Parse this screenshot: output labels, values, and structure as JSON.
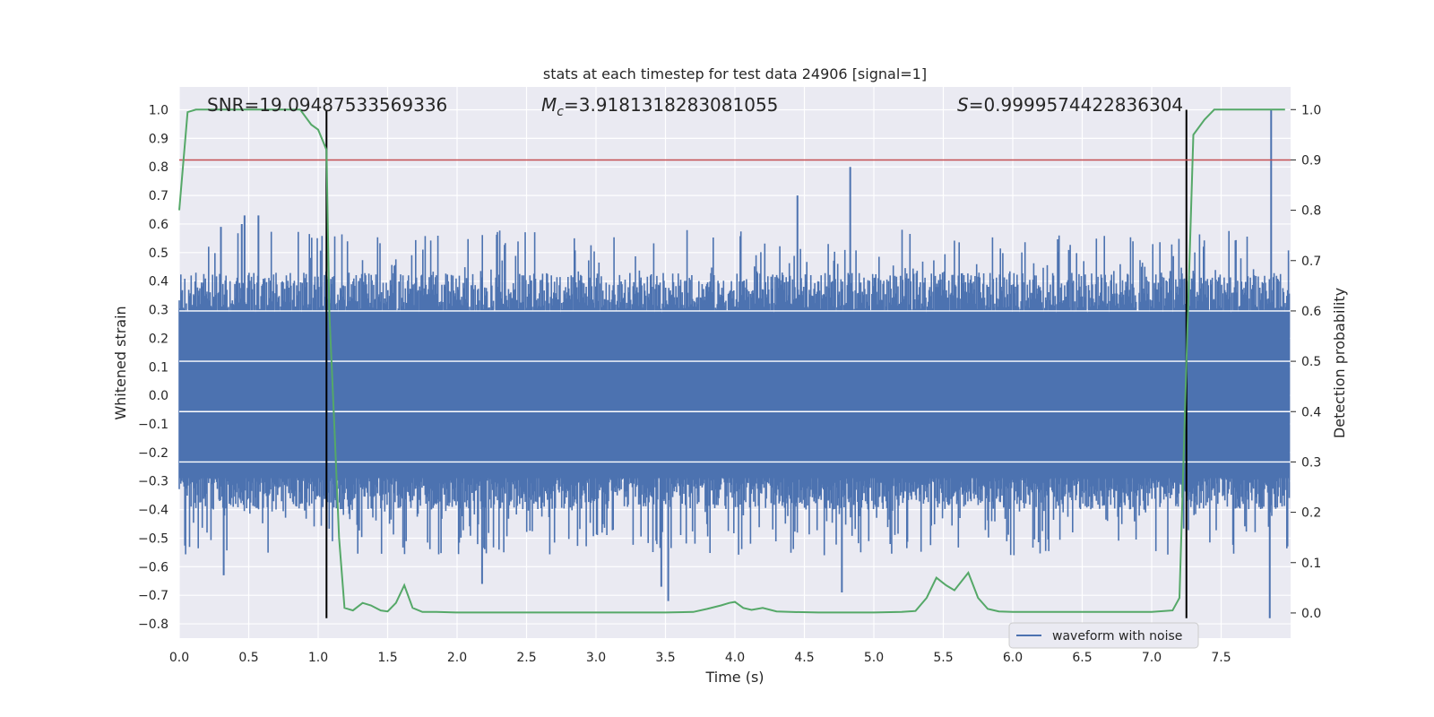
{
  "chart_data": {
    "type": "line",
    "title": "stats at each timestep for test data 24906 [signal=1]",
    "xlabel": "Time (s)",
    "ylabel": "Whitened strain",
    "y2label": "Detection probability",
    "xlim": [
      0.0,
      8.0
    ],
    "ylim": [
      -0.85,
      1.08
    ],
    "y2lim": [
      -0.05,
      1.045
    ],
    "xticks": [
      0.0,
      0.5,
      1.0,
      1.5,
      2.0,
      2.5,
      3.0,
      3.5,
      4.0,
      4.5,
      5.0,
      5.5,
      6.0,
      6.5,
      7.0,
      7.5
    ],
    "xtick_labels": [
      "0.0",
      "0.5",
      "1.0",
      "1.5",
      "2.0",
      "2.5",
      "3.0",
      "3.5",
      "4.0",
      "4.5",
      "5.0",
      "5.5",
      "6.0",
      "6.5",
      "7.0",
      "7.5"
    ],
    "yticks": [
      1.0,
      0.9,
      0.8,
      0.7,
      0.6,
      0.5,
      0.4,
      0.3,
      0.2,
      0.1,
      0.0,
      -0.1,
      -0.2,
      -0.3,
      -0.4,
      -0.5,
      -0.6,
      -0.7,
      -0.8
    ],
    "ytick_labels": [
      "1.0",
      "0.9",
      "0.8",
      "0.7",
      "0.6",
      "0.5",
      "0.4",
      "0.3",
      "0.2",
      "0.1",
      "0.0",
      "−0.1",
      "−0.2",
      "−0.3",
      "−0.4",
      "−0.5",
      "−0.6",
      "−0.7",
      "−0.8"
    ],
    "y2ticks": [
      1.0,
      0.9,
      0.8,
      0.7,
      0.6,
      0.5,
      0.4,
      0.3,
      0.2,
      0.1,
      0.0
    ],
    "y2tick_labels": [
      "1.0",
      "0.9",
      "0.8",
      "0.7",
      "0.6",
      "0.5",
      "0.4",
      "0.3",
      "0.2",
      "0.1",
      "0.0"
    ],
    "annotations": {
      "snr": "SNR=19.09487533569336",
      "mc_symbol": "M",
      "mc_sub": "c",
      "mc_value": "=3.9181318283081055",
      "s_symbol": "S",
      "s_value": "=0.9999574422836304"
    },
    "threshold": {
      "axis": "right",
      "value": 0.9,
      "color": "#c44e52"
    },
    "vlines": {
      "x": [
        1.06,
        7.25
      ],
      "ymin": -0.78,
      "ymax": 1.0,
      "color": "#000000"
    },
    "series": [
      {
        "name": "waveform with noise",
        "axis": "left",
        "color": "#4c72b0",
        "noise_core_amplitude": 0.29,
        "noise_peak_range": [
          -0.78,
          1.0
        ],
        "peaks": [
          {
            "x": 0.3,
            "y": 0.59
          },
          {
            "x": 0.45,
            "y": 0.6
          },
          {
            "x": 0.47,
            "y": 0.63
          },
          {
            "x": 0.57,
            "y": 0.63
          },
          {
            "x": 4.45,
            "y": 0.7
          },
          {
            "x": 4.83,
            "y": 0.8
          },
          {
            "x": 7.86,
            "y": 1.0
          },
          {
            "x": 0.32,
            "y": -0.63
          },
          {
            "x": 2.18,
            "y": -0.66
          },
          {
            "x": 3.47,
            "y": -0.67
          },
          {
            "x": 3.52,
            "y": -0.72
          },
          {
            "x": 4.77,
            "y": -0.69
          },
          {
            "x": 7.85,
            "y": -0.78
          }
        ]
      },
      {
        "name": "detection probability",
        "axis": "right",
        "color": "#55a868",
        "x": [
          0.0,
          0.06,
          0.12,
          0.2,
          0.3,
          0.5,
          0.7,
          0.87,
          0.95,
          1.0,
          1.06,
          1.08,
          1.12,
          1.15,
          1.19,
          1.25,
          1.32,
          1.38,
          1.45,
          1.5,
          1.56,
          1.62,
          1.68,
          1.75,
          1.85,
          2.0,
          2.5,
          3.0,
          3.5,
          3.7,
          3.8,
          3.9,
          3.96,
          4.0,
          4.06,
          4.12,
          4.2,
          4.3,
          4.4,
          4.6,
          5.0,
          5.2,
          5.3,
          5.38,
          5.45,
          5.52,
          5.58,
          5.68,
          5.75,
          5.82,
          5.9,
          6.0,
          6.3,
          6.6,
          7.0,
          7.15,
          7.2,
          7.25,
          7.3,
          7.38,
          7.45,
          7.55,
          7.65,
          7.8,
          7.96
        ],
        "y": [
          0.8,
          0.995,
          1.0,
          1.0,
          1.0,
          1.0,
          1.0,
          1.0,
          0.97,
          0.96,
          0.92,
          0.6,
          0.35,
          0.15,
          0.01,
          0.005,
          0.02,
          0.015,
          0.005,
          0.003,
          0.02,
          0.055,
          0.01,
          0.002,
          0.002,
          0.001,
          0.001,
          0.001,
          0.001,
          0.002,
          0.008,
          0.015,
          0.02,
          0.022,
          0.01,
          0.006,
          0.01,
          0.003,
          0.002,
          0.001,
          0.001,
          0.002,
          0.004,
          0.03,
          0.07,
          0.055,
          0.045,
          0.08,
          0.03,
          0.008,
          0.003,
          0.002,
          0.002,
          0.002,
          0.002,
          0.005,
          0.03,
          0.5,
          0.95,
          0.98,
          1.0,
          1.0,
          1.0,
          1.0,
          1.0
        ]
      }
    ],
    "legend": {
      "entries": [
        "waveform with noise"
      ],
      "location": "lower-right"
    }
  }
}
